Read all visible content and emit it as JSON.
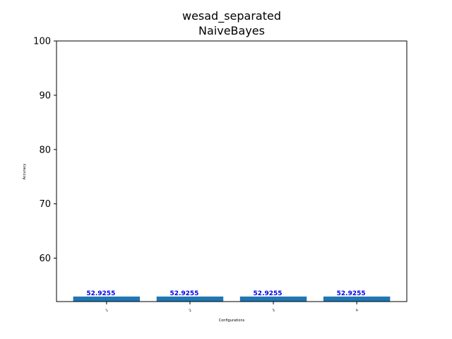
{
  "chart_data": {
    "type": "bar",
    "title": "wesad_separated",
    "subtitle": "NaiveBayes",
    "xlabel": "Configurations",
    "ylabel": "Accuracy",
    "categories": [
      "1",
      "2",
      "3",
      "4"
    ],
    "values": [
      52.9255,
      52.9255,
      52.9255,
      52.9255
    ],
    "data_labels": [
      "52.9255",
      "52.9255",
      "52.9255",
      "52.9255"
    ],
    "ylim": [
      52,
      100
    ],
    "yticks": [
      60,
      70,
      80,
      90,
      100
    ],
    "ytick_labels": [
      "60",
      "70",
      "80",
      "90",
      "100"
    ],
    "grid": false,
    "bar_color": "#1f77b4",
    "data_label_color": "#0000ee"
  }
}
